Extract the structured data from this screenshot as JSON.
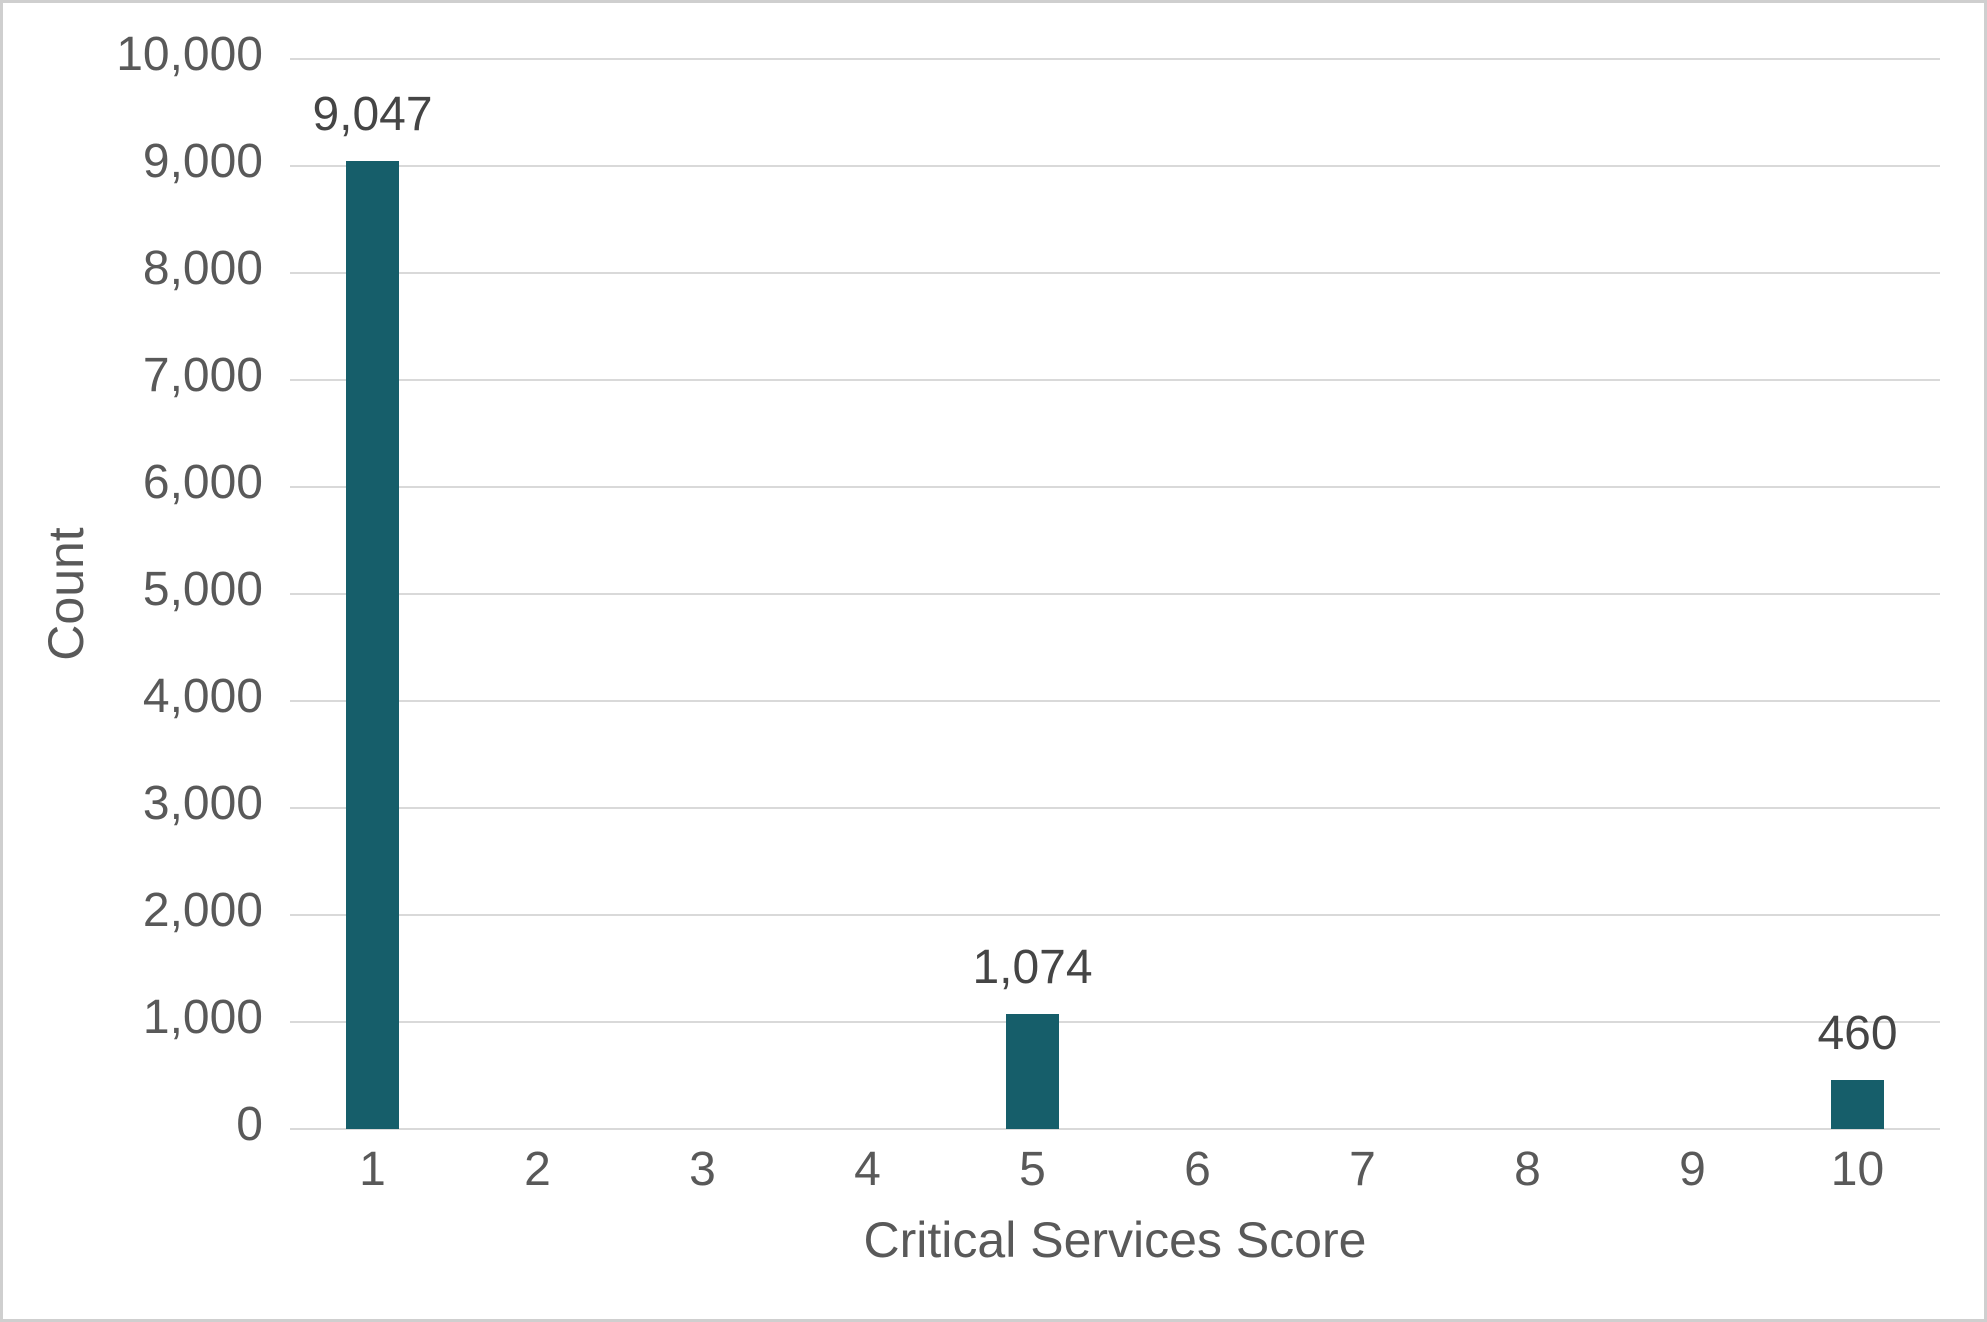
{
  "chart_data": {
    "type": "bar",
    "title": "",
    "xlabel": "Critical Services Score",
    "ylabel": "Count",
    "categories": [
      "1",
      "2",
      "3",
      "4",
      "5",
      "6",
      "7",
      "8",
      "9",
      "10"
    ],
    "values": [
      9047,
      0,
      0,
      0,
      1074,
      0,
      0,
      0,
      0,
      460
    ],
    "data_labels": [
      "9,047",
      "",
      "",
      "",
      "1,074",
      "",
      "",
      "",
      "",
      "460"
    ],
    "y_ticks": [
      {
        "value": 0,
        "label": "0"
      },
      {
        "value": 1000,
        "label": "1,000"
      },
      {
        "value": 2000,
        "label": "2,000"
      },
      {
        "value": 3000,
        "label": "3,000"
      },
      {
        "value": 4000,
        "label": "4,000"
      },
      {
        "value": 5000,
        "label": "5,000"
      },
      {
        "value": 6000,
        "label": "6,000"
      },
      {
        "value": 7000,
        "label": "7,000"
      },
      {
        "value": 8000,
        "label": "8,000"
      },
      {
        "value": 9000,
        "label": "9,000"
      },
      {
        "value": 10000,
        "label": "10,000"
      }
    ],
    "ylim": [
      0,
      10000
    ],
    "grid": "horizontal",
    "legend": "none",
    "colors": {
      "bar": "#165E6A",
      "gridline": "#D9D9D9",
      "axis_text": "#595959",
      "data_label": "#454545",
      "border": "#CFCFCF",
      "background": "#FFFFFF"
    }
  }
}
